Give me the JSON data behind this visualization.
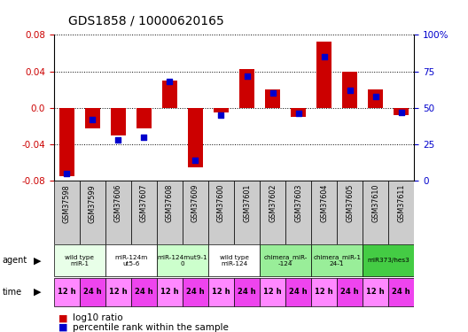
{
  "title": "GDS1858 / 10000620165",
  "samples": [
    "GSM37598",
    "GSM37599",
    "GSM37606",
    "GSM37607",
    "GSM37608",
    "GSM37609",
    "GSM37600",
    "GSM37601",
    "GSM37602",
    "GSM37603",
    "GSM37604",
    "GSM37605",
    "GSM37610",
    "GSM37611"
  ],
  "log10_ratio": [
    -0.075,
    -0.022,
    -0.03,
    -0.022,
    0.03,
    -0.065,
    -0.005,
    0.043,
    0.02,
    -0.01,
    0.073,
    0.04,
    0.02,
    -0.008
  ],
  "percentile_rank": [
    5,
    42,
    28,
    30,
    68,
    14,
    45,
    72,
    60,
    46,
    85,
    62,
    58,
    47
  ],
  "ylim": [
    -0.08,
    0.08
  ],
  "yticks_left": [
    -0.08,
    -0.04,
    0.0,
    0.04,
    0.08
  ],
  "yticks_right": [
    0,
    25,
    50,
    75,
    100
  ],
  "agent_groups": [
    {
      "label": "wild type\nmiR-1",
      "cols": [
        0,
        1
      ],
      "color": "#e8ffe8"
    },
    {
      "label": "miR-124m\nut5-6",
      "cols": [
        2,
        3
      ],
      "color": "#ffffff"
    },
    {
      "label": "miR-124mut9-1\n0",
      "cols": [
        4,
        5
      ],
      "color": "#ccffcc"
    },
    {
      "label": "wild type\nmiR-124",
      "cols": [
        6,
        7
      ],
      "color": "#ffffff"
    },
    {
      "label": "chimera_miR-\n-124",
      "cols": [
        8,
        9
      ],
      "color": "#99ee99"
    },
    {
      "label": "chimera_miR-1\n24-1",
      "cols": [
        10,
        11
      ],
      "color": "#99ee99"
    },
    {
      "label": "miR373/hes3",
      "cols": [
        12,
        13
      ],
      "color": "#44cc44"
    }
  ],
  "time_color_light": "#ff88ff",
  "time_color_dark": "#ee44ee",
  "bar_color": "#cc0000",
  "dot_color": "#0000cc",
  "bg_color": "#ffffff",
  "axis_color_left": "#cc0000",
  "axis_color_right": "#0000cc",
  "sample_bg_color": "#cccccc"
}
